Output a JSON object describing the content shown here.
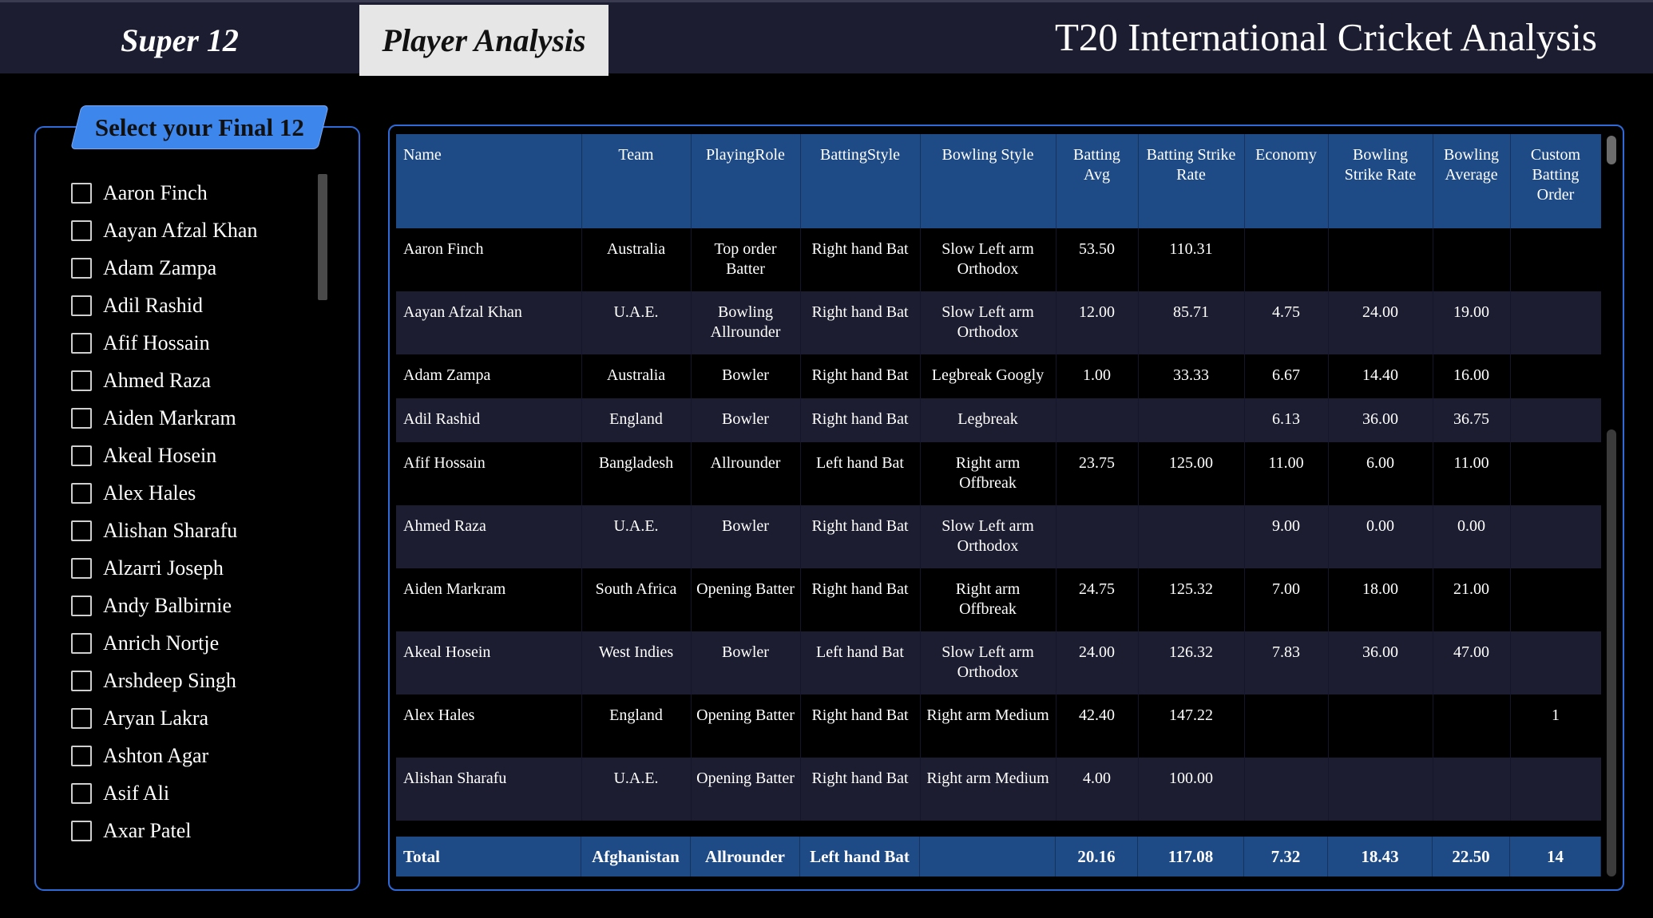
{
  "tabs": {
    "super12": "Super 12",
    "player_analysis": "Player Analysis"
  },
  "app_title": "T20 International Cricket Analysis",
  "selector": {
    "label": "Select your Final 12",
    "players": [
      "Aaron Finch",
      "Aayan Afzal Khan",
      "Adam Zampa",
      "Adil Rashid",
      "Afif Hossain",
      "Ahmed Raza",
      "Aiden Markram",
      "Akeal Hosein",
      "Alex Hales",
      "Alishan Sharafu",
      "Alzarri Joseph",
      "Andy Balbirnie",
      "Anrich Nortje",
      "Arshdeep Singh",
      "Aryan Lakra",
      "Ashton Agar",
      "Asif Ali",
      "Axar Patel"
    ]
  },
  "table": {
    "headers": [
      "Name",
      "Team",
      "PlayingRole",
      "BattingStyle",
      "Bowling Style",
      "Batting Avg",
      "Batting Strike Rate",
      "Economy",
      "Bowling Strike Rate",
      "Bowling Average",
      "Custom Batting Order"
    ],
    "rows": [
      [
        "Aaron Finch",
        "Australia",
        "Top order Batter",
        "Right hand Bat",
        "Slow Left arm Orthodox",
        "53.50",
        "110.31",
        "",
        "",
        "",
        ""
      ],
      [
        "Aayan Afzal Khan",
        "U.A.E.",
        "Bowling Allrounder",
        "Right hand Bat",
        "Slow Left arm Orthodox",
        "12.00",
        "85.71",
        "4.75",
        "24.00",
        "19.00",
        ""
      ],
      [
        "Adam Zampa",
        "Australia",
        "Bowler",
        "Right hand Bat",
        "Legbreak Googly",
        "1.00",
        "33.33",
        "6.67",
        "14.40",
        "16.00",
        ""
      ],
      [
        "Adil Rashid",
        "England",
        "Bowler",
        "Right hand Bat",
        "Legbreak",
        "",
        "",
        "6.13",
        "36.00",
        "36.75",
        ""
      ],
      [
        "Afif Hossain",
        "Bangladesh",
        "Allrounder",
        "Left hand Bat",
        "Right arm Offbreak",
        "23.75",
        "125.00",
        "11.00",
        "6.00",
        "11.00",
        ""
      ],
      [
        "Ahmed Raza",
        "U.A.E.",
        "Bowler",
        "Right hand Bat",
        "Slow Left arm Orthodox",
        "",
        "",
        "9.00",
        "0.00",
        "0.00",
        ""
      ],
      [
        "Aiden Markram",
        "South Africa",
        "Opening Batter",
        "Right hand Bat",
        "Right arm Offbreak",
        "24.75",
        "125.32",
        "7.00",
        "18.00",
        "21.00",
        ""
      ],
      [
        "Akeal Hosein",
        "West Indies",
        "Bowler",
        "Left hand Bat",
        "Slow Left arm Orthodox",
        "24.00",
        "126.32",
        "7.83",
        "36.00",
        "47.00",
        ""
      ],
      [
        "Alex Hales",
        "England",
        "Opening Batter",
        "Right hand Bat",
        "Right arm Medium",
        "42.40",
        "147.22",
        "",
        "",
        "",
        "1"
      ],
      [
        "Alishan Sharafu",
        "U.A.E.",
        "Opening Batter",
        "Right hand Bat",
        "Right arm Medium",
        "4.00",
        "100.00",
        "",
        "",
        "",
        ""
      ]
    ],
    "total": [
      "Total",
      "Afghanistan",
      "Allrounder",
      "Left hand Bat",
      "",
      "20.16",
      "117.08",
      "7.32",
      "18.43",
      "22.50",
      "14"
    ]
  }
}
